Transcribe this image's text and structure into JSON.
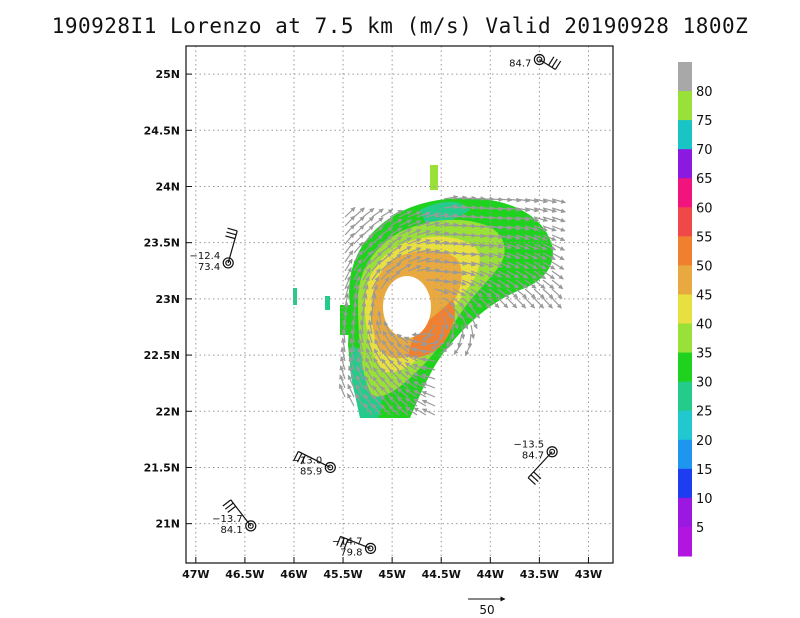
{
  "title": "190928I1 Lorenzo at 7.5 km (m/s) Valid 20190928 1800Z",
  "map": {
    "lat_labels": [
      "25N",
      "24.5N",
      "24N",
      "23.5N",
      "23N",
      "22.5N",
      "22N",
      "21.5N",
      "21N"
    ],
    "lon_labels": [
      "47W",
      "46.5W",
      "46W",
      "45.5W",
      "45W",
      "44.5W",
      "44W",
      "43.5W",
      "43W"
    ],
    "lat_range": [
      20.65,
      25.25
    ],
    "lon_range": [
      -47.1,
      -42.75
    ],
    "grid": "dotted"
  },
  "colorbar": {
    "labels": [
      "80",
      "75",
      "70",
      "65",
      "60",
      "55",
      "50",
      "45",
      "40",
      "35",
      "30",
      "25",
      "20",
      "15",
      "10",
      "5"
    ],
    "colors": [
      "#a8a8a8",
      "#99e038",
      "#18c4c4",
      "#8a1ae0",
      "#f0147c",
      "#f04848",
      "#f08030",
      "#e8aa40",
      "#e8e040",
      "#99e038",
      "#1ed21e",
      "#24cc8c",
      "#22c8d0",
      "#1e96f0",
      "#1e3cf0",
      "#9a18e0",
      "#b016e0"
    ]
  },
  "stations": [
    {
      "lat": 25.13,
      "lon": -43.5,
      "top": "",
      "bottom": "84.7"
    },
    {
      "lat": 23.32,
      "lon": -46.67,
      "top": "−12.4",
      "bottom": "73.4"
    },
    {
      "lat": 21.5,
      "lon": -45.63,
      "top": "−13.0",
      "bottom": "85.9"
    },
    {
      "lat": 21.64,
      "lon": -43.37,
      "top": "−13.5",
      "bottom": "84.7"
    },
    {
      "lat": 20.98,
      "lon": -46.44,
      "top": "−13.7",
      "bottom": "84.1"
    },
    {
      "lat": 20.78,
      "lon": -45.22,
      "top": "−14.7",
      "bottom": "79.8"
    }
  ],
  "reference_vector": {
    "label": "50"
  }
}
